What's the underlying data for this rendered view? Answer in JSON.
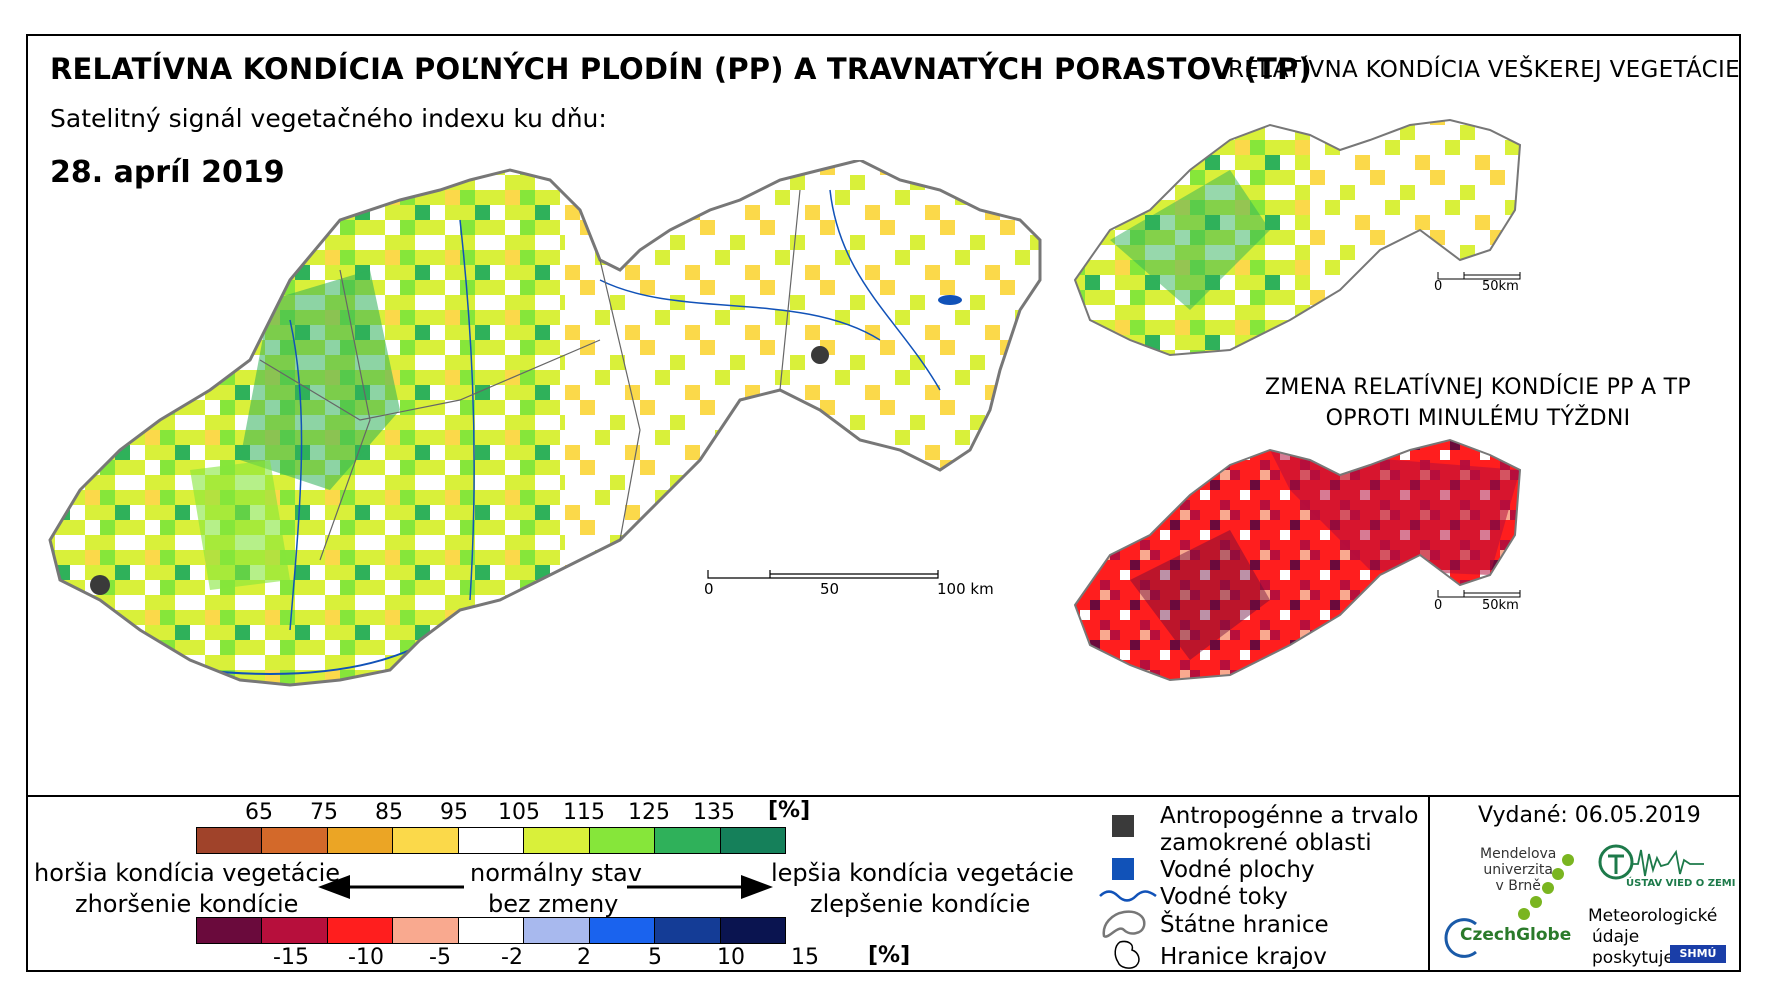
{
  "header": {
    "title": "RELATÍVNA KONDÍCIA POĽNÝCH PLODÍN (PP) A TRAVNATÝCH PORASTOV (TP)",
    "subtitle": "Satelitný signál vegetačného indexu ku dňu:",
    "date": "28. apríl 2019"
  },
  "right_panel": {
    "vegetation_title": "RELATÍVNA KONDÍCIA VEŠKEREJ VEGETÁCIE",
    "change_title_line1": "ZMENA RELATÍVNEJ KONDÍCIE PP A TP",
    "change_title_line2": "OPROTI MINULÉMU TÝŽDNI",
    "small_scale": {
      "start": "0",
      "end": "50km"
    }
  },
  "main_scale": {
    "start": "0",
    "mid": "50",
    "end": "100 km"
  },
  "condition_legend": {
    "ticks": [
      "65",
      "75",
      "85",
      "95",
      "105",
      "115",
      "125",
      "135"
    ],
    "unit": "[%]",
    "colors": [
      "#a0432a",
      "#d3692a",
      "#eba525",
      "#fbd94a",
      "#ffffff",
      "#d9f03a",
      "#86e63a",
      "#2fb15a",
      "#15805a"
    ]
  },
  "change_legend": {
    "ticks": [
      "-15",
      "-10",
      "-5",
      "-2",
      "2",
      "5",
      "10",
      "15"
    ],
    "unit": "[%]",
    "colors": [
      "#6a0a3c",
      "#b70f3c",
      "#ff1e1e",
      "#f9a98f",
      "#ffffff",
      "#a8b9ee",
      "#1a63ee",
      "#143c96",
      "#0a1450"
    ]
  },
  "captions": {
    "worse_condition": "horšia kondícia vegetácie",
    "worsened": "zhoršenie kondície",
    "normal": "normálny stav",
    "no_change": "bez zmeny",
    "better_condition": "lepšia kondícia vegetácie",
    "improved": "zlepšenie kondície"
  },
  "map_legend": {
    "anthropogenic_line1": "Antropogénne a trvalo",
    "anthropogenic_line2": "zamokrené oblasti",
    "water_areas": "Vodné plochy",
    "rivers": "Vodné toky",
    "state_borders": "Štátne hranice",
    "region_borders": "Hranice krajov",
    "anthropogenic_color": "#3a3a3a",
    "water_color": "#1152b8"
  },
  "footer": {
    "issued": "Vydané: 06.05.2019",
    "mendel_line1": "Mendelova",
    "mendel_line2": "univerzita",
    "mendel_line3": "v Brně",
    "czechglobe": "CzechGlobe",
    "uvoz": "ÚSTAV VIED O ZEMI",
    "meteo_line1": "Meteorologické",
    "meteo_line2": "údaje",
    "meteo_line3": "poskytuje:",
    "shmu": "SHMÚ"
  }
}
